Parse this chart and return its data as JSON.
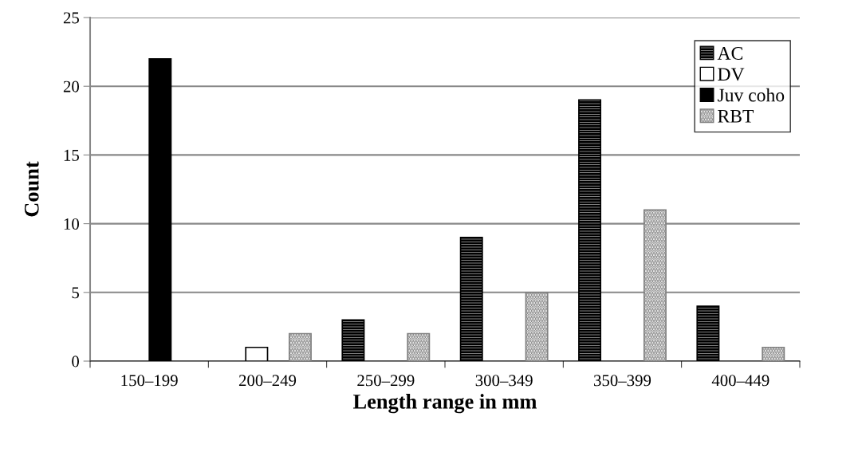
{
  "chart_data": {
    "type": "bar",
    "xlabel": "Length range in mm",
    "ylabel": "Count",
    "categories": [
      "150–199",
      "200–249",
      "250–299",
      "300–349",
      "350–399",
      "400–449"
    ],
    "series": [
      {
        "name": "AC",
        "color": "#000000",
        "values": [
          null,
          null,
          3,
          9,
          19,
          4
        ]
      },
      {
        "name": "DV",
        "color": "#ffffff",
        "values": [
          null,
          1,
          null,
          null,
          null,
          null
        ]
      },
      {
        "name": "Juv coho",
        "color": "#000000",
        "values": [
          22,
          null,
          null,
          null,
          null,
          null
        ]
      },
      {
        "name": "RBT",
        "color": "#808080",
        "values": [
          null,
          2,
          2,
          5,
          11,
          1
        ]
      }
    ],
    "ylim": [
      0,
      25
    ],
    "yticks": [
      0,
      5,
      10,
      15,
      20,
      25
    ],
    "grid": "y",
    "legend": "top right"
  }
}
